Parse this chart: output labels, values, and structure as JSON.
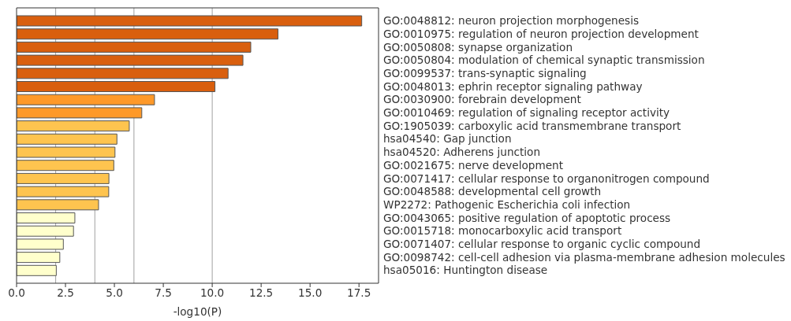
{
  "chart_data": {
    "type": "bar",
    "orientation": "horizontal",
    "categories": [
      "GO:0048812: neuron projection morphogenesis",
      "GO:0010975: regulation of neuron projection development",
      "GO:0050808: synapse organization",
      "GO:0050804: modulation of chemical synaptic transmission",
      "GO:0099537: trans-synaptic signaling",
      "GO:0048013: ephrin receptor signaling pathway",
      "GO:0030900: forebrain development",
      "GO:0010469: regulation of signaling receptor activity",
      "GO:1905039: carboxylic acid transmembrane transport",
      "hsa04540: Gap junction",
      "hsa04520: Adherens junction",
      "GO:0021675: nerve development",
      "GO:0071417: cellular response to organonitrogen compound",
      "GO:0048588: developmental cell growth",
      "WP2272: Pathogenic Escherichia coli infection",
      "GO:0043065: positive regulation of apoptotic process",
      "GO:0015718: monocarboxylic acid transport",
      "GO:0071407: cellular response to organic cyclic compound",
      "GO:0098742: cell-cell adhesion via plasma-membrane adhesion molecules",
      "hsa05016: Huntington disease"
    ],
    "values": [
      17.64,
      13.36,
      11.97,
      11.57,
      10.81,
      10.14,
      7.05,
      6.4,
      5.76,
      5.13,
      5.03,
      4.97,
      4.72,
      4.71,
      4.19,
      2.98,
      2.91,
      2.39,
      2.21,
      2.03
    ],
    "colors": [
      "#d95f0e",
      "#d95f0e",
      "#d95f0e",
      "#d95f0e",
      "#d95f0e",
      "#d95f0e",
      "#fe9929",
      "#fe9929",
      "#fec44f",
      "#fec44f",
      "#fec44f",
      "#fec44f",
      "#fec44f",
      "#fec44f",
      "#fec44f",
      "#ffffcc",
      "#ffffcc",
      "#ffffcc",
      "#ffffcc",
      "#ffffcc"
    ],
    "xlabel": "-log10(P)",
    "xlim": [
      0,
      18.5
    ],
    "xticks": [
      {
        "value": 0,
        "label": "0.0"
      },
      2.5,
      {
        "value": 5,
        "label": "5.0"
      },
      7.5,
      {
        "value": 10,
        "label": "10.0"
      },
      12.5,
      {
        "value": 15,
        "label": "15.0"
      },
      17.5
    ],
    "ref_lines": [
      {
        "axis": "x",
        "value": 2,
        "color": "#a0a0a0"
      },
      {
        "axis": "x",
        "value": 4,
        "color": "#a0a0a0"
      },
      {
        "axis": "x",
        "value": 6,
        "color": "#a0a0a0"
      },
      {
        "axis": "x",
        "value": 10,
        "color": "#a0a0a0"
      }
    ],
    "grid": false,
    "legend": false
  }
}
